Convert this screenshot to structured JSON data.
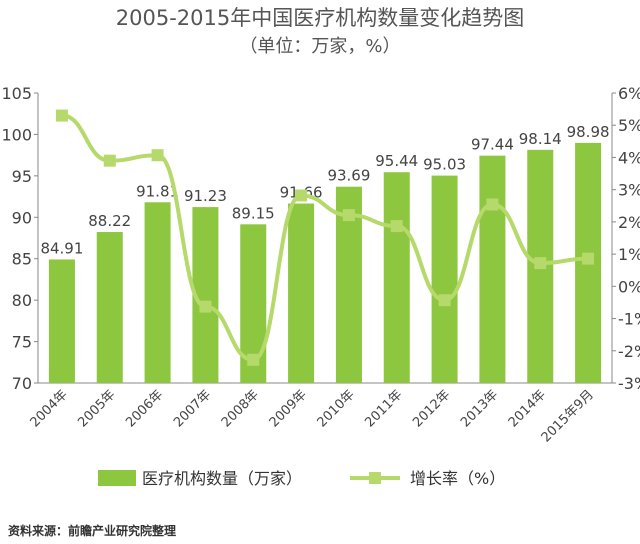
{
  "chart_data": {
    "type": "bar+line",
    "title": "2005-2015年中国医疗机构数量变化趋势图",
    "subtitle": "（单位：万家，%）",
    "categories": [
      "2004年",
      "2005年",
      "2006年",
      "2007年",
      "2008年",
      "2009年",
      "2010年",
      "2011年",
      "2012年",
      "2013年",
      "2014年",
      "2015年9月"
    ],
    "series": [
      {
        "name": "医疗机构数量（万家）",
        "type": "bar",
        "axis": "left",
        "color": "#8dc63f",
        "values": [
          84.91,
          88.22,
          91.81,
          91.23,
          89.15,
          91.66,
          93.69,
          95.44,
          95.03,
          97.44,
          98.14,
          98.98
        ]
      },
      {
        "name": "增长率（%）",
        "type": "line",
        "axis": "right",
        "color": "#b5d96a",
        "values": [
          5.3,
          3.9,
          4.07,
          -0.63,
          -2.28,
          2.82,
          2.21,
          1.87,
          -0.43,
          2.54,
          0.72,
          0.86
        ]
      }
    ],
    "left_axis": {
      "ylim": [
        70,
        105
      ],
      "ticks": [
        "70",
        "75",
        "80",
        "85",
        "90",
        "95",
        "100",
        "105"
      ]
    },
    "right_axis": {
      "ylim": [
        -3,
        6
      ],
      "ticks": [
        "-3%",
        "-2%",
        "-1%",
        "0%",
        "1%",
        "2%",
        "3%",
        "4%",
        "5%",
        "6%"
      ]
    },
    "legend": "bottom"
  },
  "source": "资料来源：前瞻产业研究院整理"
}
